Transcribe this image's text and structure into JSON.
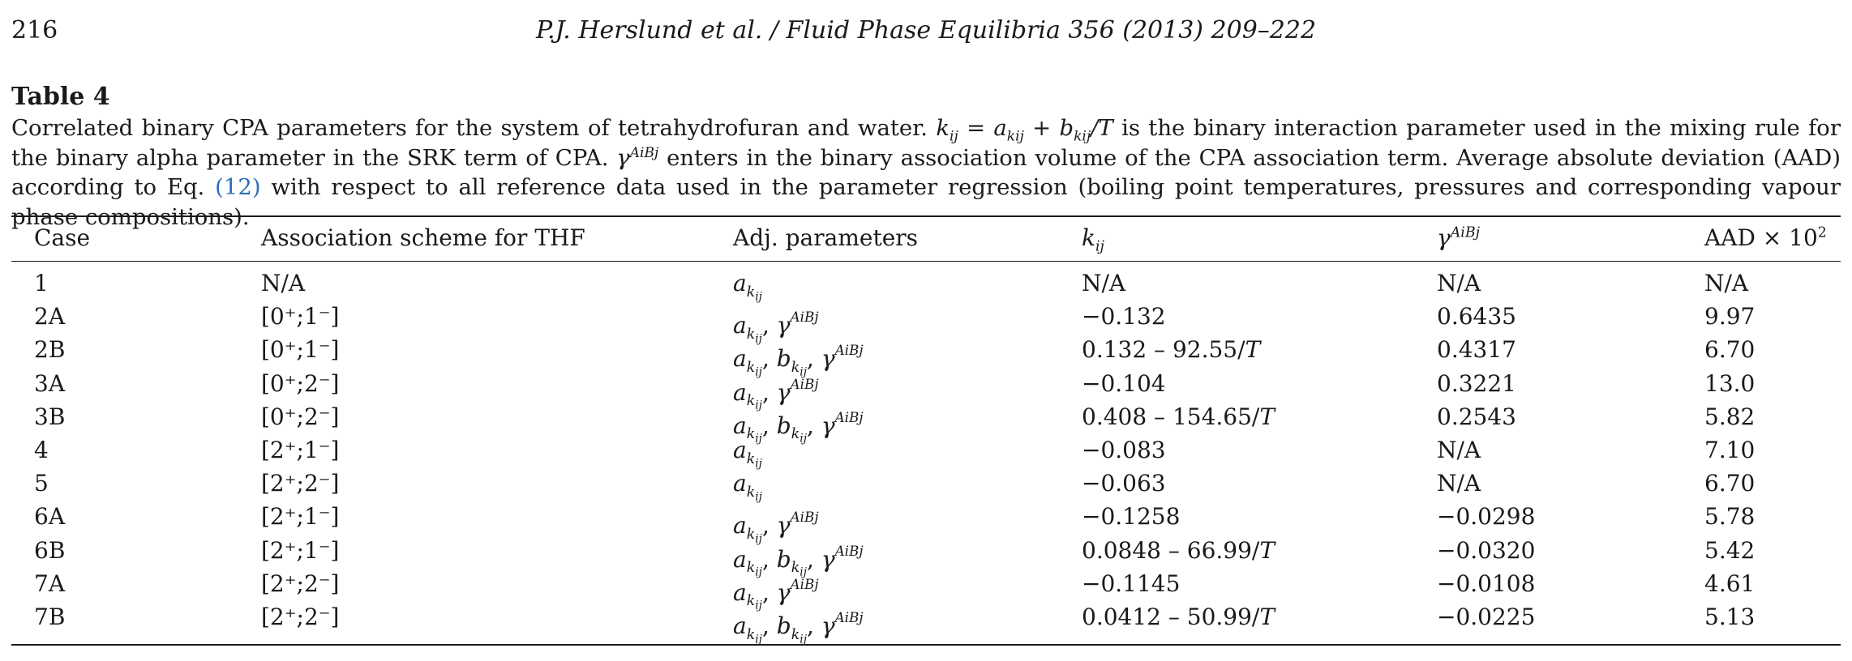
{
  "header": {
    "page_number": "216",
    "journal": "P.J. Herslund et al. / Fluid Phase Equilibria 356 (2013) 209–222"
  },
  "table": {
    "label": "Table 4",
    "caption_parts": [
      "Correlated binary CPA parameters for the system of tetrahydrofuran and water.",
      "k",
      "ij",
      "= a",
      "kij",
      "+ b",
      "kij",
      "/T",
      "is the binary interaction parameter used in the mixing rule for the binary alpha parameter in the SRK term of CPA.",
      "γ",
      "AiBj",
      "enters in the binary association volume of the CPA association term. Average absolute deviation (AAD) according to Eq.",
      "(12)",
      "with respect to all reference data used in the parameter regression (boiling point temperatures, pressures and corresponding vapour phase compositions)."
    ],
    "columns": [
      "Case",
      "Association scheme for THF",
      "Adj. parameters",
      "k",
      "γ",
      "AAD × 10"
    ],
    "column_subs": {
      "kij": "ij",
      "gamma": "AiBj",
      "aad_exp": "2"
    },
    "rows": [
      {
        "case": "1",
        "scheme": "N/A",
        "params": "a_k",
        "kij": "N/A",
        "gamma": "N/A",
        "aad": "N/A"
      },
      {
        "case": "2A",
        "scheme": "[0⁺;1⁻]",
        "params": "a_k,γ",
        "kij": "−0.132",
        "gamma": "0.6435",
        "aad": "9.97"
      },
      {
        "case": "2B",
        "scheme": "[0⁺;1⁻]",
        "params": "a_k,b_k,γ",
        "kij": "0.132 – 92.55/T",
        "gamma": "0.4317",
        "aad": "6.70"
      },
      {
        "case": "3A",
        "scheme": "[0⁺;2⁻]",
        "params": "a_k,γ",
        "kij": "−0.104",
        "gamma": "0.3221",
        "aad": "13.0"
      },
      {
        "case": "3B",
        "scheme": "[0⁺;2⁻]",
        "params": "a_k,b_k,γ",
        "kij": "0.408 – 154.65/T",
        "gamma": "0.2543",
        "aad": "5.82"
      },
      {
        "case": "4",
        "scheme": "[2⁺;1⁻]",
        "params": "a_k",
        "kij": "−0.083",
        "gamma": "N/A",
        "aad": "7.10"
      },
      {
        "case": "5",
        "scheme": "[2⁺;2⁻]",
        "params": "a_k",
        "kij": "−0.063",
        "gamma": "N/A",
        "aad": "6.70"
      },
      {
        "case": "6A",
        "scheme": "[2⁺;1⁻]",
        "params": "a_k,γ",
        "kij": "−0.1258",
        "gamma": "−0.0298",
        "aad": "5.78"
      },
      {
        "case": "6B",
        "scheme": "[2⁺;1⁻]",
        "params": "a_k,b_k,γ",
        "kij": "0.0848 – 66.99/T",
        "gamma": "−0.0320",
        "aad": "5.42"
      },
      {
        "case": "7A",
        "scheme": "[2⁺;2⁻]",
        "params": "a_k,γ",
        "kij": "−0.1145",
        "gamma": "−0.0108",
        "aad": "4.61"
      },
      {
        "case": "7B",
        "scheme": "[2⁺;2⁻]",
        "params": "a_k,b_k,γ",
        "kij": "0.0412 – 50.99/T",
        "gamma": "−0.0225",
        "aad": "5.13"
      }
    ]
  },
  "colors": {
    "text": "#1a1a1a",
    "link": "#2a6fb8"
  }
}
